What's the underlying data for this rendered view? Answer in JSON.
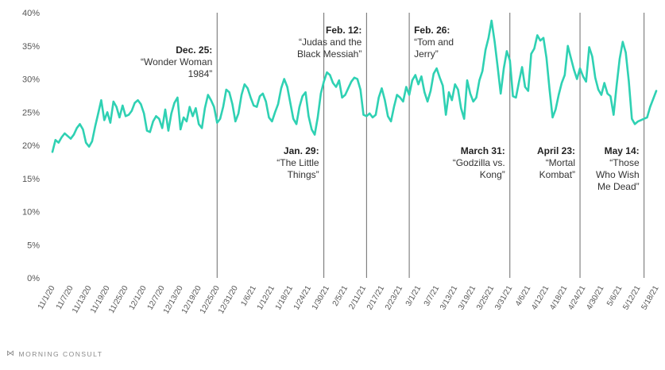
{
  "chart_data": {
    "type": "line",
    "title": "",
    "xlabel": "",
    "ylabel": "",
    "ylim": [
      0,
      40
    ],
    "y_ticks": [
      "0%",
      "5%",
      "10%",
      "15%",
      "20%",
      "25%",
      "30%",
      "35%",
      "40%"
    ],
    "grid": false,
    "line_color": "#2fd1b3",
    "x_tick_labels": [
      "11/1/20",
      "11/7/20",
      "11/13/20",
      "11/19/20",
      "11/25/20",
      "12/1/20",
      "12/7/20",
      "12/13/20",
      "12/19/20",
      "12/25/20",
      "12/31/20",
      "1/6/21",
      "1/12/21",
      "1/18/21",
      "1/24/21",
      "1/30/21",
      "2/5/21",
      "2/11/21",
      "2/17/21",
      "2/23/21",
      "3/1/21",
      "3/7/21",
      "3/13/21",
      "3/19/21",
      "3/25/21",
      "3/31/21",
      "4/6/21",
      "4/12/21",
      "4/18/21",
      "4/24/21",
      "4/30/21",
      "5/6/21",
      "5/12/21",
      "5/18/21"
    ],
    "series": [
      {
        "values": [
          {
            "x": "11/1/20",
            "y": 19.0
          },
          {
            "x": "11/2/20",
            "y": 20.8
          },
          {
            "x": "11/3/20",
            "y": 20.4
          },
          {
            "x": "11/4/20",
            "y": 21.2
          },
          {
            "x": "11/5/20",
            "y": 21.8
          },
          {
            "x": "11/6/20",
            "y": 21.4
          },
          {
            "x": "11/7/20",
            "y": 21.0
          },
          {
            "x": "11/8/20",
            "y": 21.6
          },
          {
            "x": "11/9/20",
            "y": 22.6
          },
          {
            "x": "11/10/20",
            "y": 23.2
          },
          {
            "x": "11/11/20",
            "y": 22.4
          },
          {
            "x": "11/12/20",
            "y": 20.4
          },
          {
            "x": "11/13/20",
            "y": 19.8
          },
          {
            "x": "11/14/20",
            "y": 20.6
          },
          {
            "x": "11/15/20",
            "y": 22.8
          },
          {
            "x": "11/16/20",
            "y": 24.8
          },
          {
            "x": "11/17/20",
            "y": 26.8
          },
          {
            "x": "11/18/20",
            "y": 23.8
          },
          {
            "x": "11/19/20",
            "y": 25.0
          },
          {
            "x": "11/20/20",
            "y": 23.4
          },
          {
            "x": "11/21/20",
            "y": 26.6
          },
          {
            "x": "11/22/20",
            "y": 25.8
          },
          {
            "x": "11/23/20",
            "y": 24.2
          },
          {
            "x": "11/24/20",
            "y": 26.0
          },
          {
            "x": "11/25/20",
            "y": 24.4
          },
          {
            "x": "11/26/20",
            "y": 24.6
          },
          {
            "x": "11/27/20",
            "y": 25.2
          },
          {
            "x": "11/28/20",
            "y": 26.4
          },
          {
            "x": "11/29/20",
            "y": 26.8
          },
          {
            "x": "11/30/20",
            "y": 26.2
          },
          {
            "x": "12/1/20",
            "y": 24.8
          },
          {
            "x": "12/2/20",
            "y": 22.2
          },
          {
            "x": "12/3/20",
            "y": 22.0
          },
          {
            "x": "12/4/20",
            "y": 23.6
          },
          {
            "x": "12/5/20",
            "y": 24.4
          },
          {
            "x": "12/6/20",
            "y": 24.0
          },
          {
            "x": "12/7/20",
            "y": 22.6
          },
          {
            "x": "12/8/20",
            "y": 25.4
          },
          {
            "x": "12/9/20",
            "y": 22.2
          },
          {
            "x": "12/10/20",
            "y": 24.8
          },
          {
            "x": "12/11/20",
            "y": 26.4
          },
          {
            "x": "12/12/20",
            "y": 27.2
          },
          {
            "x": "12/13/20",
            "y": 22.4
          },
          {
            "x": "12/14/20",
            "y": 24.2
          },
          {
            "x": "12/15/20",
            "y": 23.6
          },
          {
            "x": "12/16/20",
            "y": 25.8
          },
          {
            "x": "12/17/20",
            "y": 24.4
          },
          {
            "x": "12/18/20",
            "y": 25.6
          },
          {
            "x": "12/19/20",
            "y": 23.2
          },
          {
            "x": "12/20/20",
            "y": 22.6
          },
          {
            "x": "12/21/20",
            "y": 25.6
          },
          {
            "x": "12/22/20",
            "y": 27.6
          },
          {
            "x": "12/23/20",
            "y": 26.8
          },
          {
            "x": "12/24/20",
            "y": 25.8
          },
          {
            "x": "12/25/20",
            "y": 23.4
          },
          {
            "x": "12/26/20",
            "y": 24.0
          },
          {
            "x": "12/27/20",
            "y": 25.8
          },
          {
            "x": "12/28/20",
            "y": 28.4
          },
          {
            "x": "12/29/20",
            "y": 28.0
          },
          {
            "x": "12/30/20",
            "y": 26.2
          },
          {
            "x": "12/31/20",
            "y": 23.6
          },
          {
            "x": "1/1/21",
            "y": 24.8
          },
          {
            "x": "1/2/21",
            "y": 27.6
          },
          {
            "x": "1/3/21",
            "y": 29.2
          },
          {
            "x": "1/4/21",
            "y": 28.6
          },
          {
            "x": "1/5/21",
            "y": 27.2
          },
          {
            "x": "1/6/21",
            "y": 26.0
          },
          {
            "x": "1/7/21",
            "y": 25.8
          },
          {
            "x": "1/8/21",
            "y": 27.4
          },
          {
            "x": "1/9/21",
            "y": 27.8
          },
          {
            "x": "1/10/21",
            "y": 26.6
          },
          {
            "x": "1/11/21",
            "y": 24.2
          },
          {
            "x": "1/12/21",
            "y": 23.6
          },
          {
            "x": "1/13/21",
            "y": 25.0
          },
          {
            "x": "1/14/21",
            "y": 26.2
          },
          {
            "x": "1/15/21",
            "y": 28.6
          },
          {
            "x": "1/16/21",
            "y": 30.0
          },
          {
            "x": "1/17/21",
            "y": 28.8
          },
          {
            "x": "1/18/21",
            "y": 26.4
          },
          {
            "x": "1/19/21",
            "y": 24.0
          },
          {
            "x": "1/20/21",
            "y": 23.2
          },
          {
            "x": "1/21/21",
            "y": 25.8
          },
          {
            "x": "1/22/21",
            "y": 27.4
          },
          {
            "x": "1/23/21",
            "y": 28.0
          },
          {
            "x": "1/24/21",
            "y": 24.4
          },
          {
            "x": "1/25/21",
            "y": 22.4
          },
          {
            "x": "1/26/21",
            "y": 21.6
          },
          {
            "x": "1/27/21",
            "y": 24.2
          },
          {
            "x": "1/28/21",
            "y": 27.8
          },
          {
            "x": "1/29/21",
            "y": 29.6
          },
          {
            "x": "1/30/21",
            "y": 31.0
          },
          {
            "x": "1/31/21",
            "y": 30.6
          },
          {
            "x": "2/1/21",
            "y": 29.4
          },
          {
            "x": "2/2/21",
            "y": 28.8
          },
          {
            "x": "2/3/21",
            "y": 29.8
          },
          {
            "x": "2/4/21",
            "y": 27.2
          },
          {
            "x": "2/5/21",
            "y": 27.6
          },
          {
            "x": "2/6/21",
            "y": 28.6
          },
          {
            "x": "2/7/21",
            "y": 29.6
          },
          {
            "x": "2/8/21",
            "y": 30.2
          },
          {
            "x": "2/9/21",
            "y": 30.0
          },
          {
            "x": "2/10/21",
            "y": 28.4
          },
          {
            "x": "2/11/21",
            "y": 24.6
          },
          {
            "x": "2/12/21",
            "y": 24.4
          },
          {
            "x": "2/13/21",
            "y": 24.8
          },
          {
            "x": "2/14/21",
            "y": 24.2
          },
          {
            "x": "2/15/21",
            "y": 24.6
          },
          {
            "x": "2/16/21",
            "y": 27.2
          },
          {
            "x": "2/17/21",
            "y": 28.6
          },
          {
            "x": "2/18/21",
            "y": 26.8
          },
          {
            "x": "2/19/21",
            "y": 24.4
          },
          {
            "x": "2/20/21",
            "y": 23.6
          },
          {
            "x": "2/21/21",
            "y": 25.8
          },
          {
            "x": "2/22/21",
            "y": 27.6
          },
          {
            "x": "2/23/21",
            "y": 27.2
          },
          {
            "x": "2/24/21",
            "y": 26.6
          },
          {
            "x": "2/25/21",
            "y": 28.8
          },
          {
            "x": "2/26/21",
            "y": 27.6
          },
          {
            "x": "2/27/21",
            "y": 29.8
          },
          {
            "x": "2/28/21",
            "y": 30.6
          },
          {
            "x": "3/1/21",
            "y": 29.2
          },
          {
            "x": "3/2/21",
            "y": 30.4
          },
          {
            "x": "3/3/21",
            "y": 28.0
          },
          {
            "x": "3/4/21",
            "y": 26.6
          },
          {
            "x": "3/5/21",
            "y": 28.2
          },
          {
            "x": "3/6/21",
            "y": 30.8
          },
          {
            "x": "3/7/21",
            "y": 31.6
          },
          {
            "x": "3/8/21",
            "y": 30.2
          },
          {
            "x": "3/9/21",
            "y": 29.0
          },
          {
            "x": "3/10/21",
            "y": 24.6
          },
          {
            "x": "3/11/21",
            "y": 28.0
          },
          {
            "x": "3/12/21",
            "y": 26.8
          },
          {
            "x": "3/13/21",
            "y": 29.2
          },
          {
            "x": "3/14/21",
            "y": 28.4
          },
          {
            "x": "3/15/21",
            "y": 25.6
          },
          {
            "x": "3/16/21",
            "y": 24.0
          },
          {
            "x": "3/17/21",
            "y": 29.8
          },
          {
            "x": "3/18/21",
            "y": 27.8
          },
          {
            "x": "3/19/21",
            "y": 26.6
          },
          {
            "x": "3/20/21",
            "y": 27.2
          },
          {
            "x": "3/21/21",
            "y": 29.8
          },
          {
            "x": "3/22/21",
            "y": 31.2
          },
          {
            "x": "3/23/21",
            "y": 34.4
          },
          {
            "x": "3/24/21",
            "y": 36.2
          },
          {
            "x": "3/25/21",
            "y": 38.8
          },
          {
            "x": "3/26/21",
            "y": 35.6
          },
          {
            "x": "3/27/21",
            "y": 31.8
          },
          {
            "x": "3/28/21",
            "y": 27.8
          },
          {
            "x": "3/29/21",
            "y": 31.6
          },
          {
            "x": "3/30/21",
            "y": 34.2
          },
          {
            "x": "3/31/21",
            "y": 32.8
          },
          {
            "x": "4/1/21",
            "y": 27.4
          },
          {
            "x": "4/2/21",
            "y": 27.2
          },
          {
            "x": "4/3/21",
            "y": 29.6
          },
          {
            "x": "4/4/21",
            "y": 31.8
          },
          {
            "x": "4/5/21",
            "y": 28.8
          },
          {
            "x": "4/6/21",
            "y": 28.2
          },
          {
            "x": "4/7/21",
            "y": 33.8
          },
          {
            "x": "4/8/21",
            "y": 34.6
          },
          {
            "x": "4/9/21",
            "y": 36.6
          },
          {
            "x": "4/10/21",
            "y": 35.8
          },
          {
            "x": "4/11/21",
            "y": 36.2
          },
          {
            "x": "4/12/21",
            "y": 33.2
          },
          {
            "x": "4/13/21",
            "y": 28.4
          },
          {
            "x": "4/14/21",
            "y": 24.2
          },
          {
            "x": "4/15/21",
            "y": 25.4
          },
          {
            "x": "4/16/21",
            "y": 27.6
          },
          {
            "x": "4/17/21",
            "y": 29.4
          },
          {
            "x": "4/18/21",
            "y": 30.6
          },
          {
            "x": "4/19/21",
            "y": 35.0
          },
          {
            "x": "4/20/21",
            "y": 33.2
          },
          {
            "x": "4/21/21",
            "y": 31.4
          },
          {
            "x": "4/22/21",
            "y": 30.0
          },
          {
            "x": "4/23/21",
            "y": 31.6
          },
          {
            "x": "4/24/21",
            "y": 30.4
          },
          {
            "x": "4/25/21",
            "y": 29.6
          },
          {
            "x": "4/26/21",
            "y": 34.8
          },
          {
            "x": "4/27/21",
            "y": 33.4
          },
          {
            "x": "4/28/21",
            "y": 30.2
          },
          {
            "x": "4/29/21",
            "y": 28.4
          },
          {
            "x": "4/30/21",
            "y": 27.6
          },
          {
            "x": "5/1/21",
            "y": 29.4
          },
          {
            "x": "5/2/21",
            "y": 27.8
          },
          {
            "x": "5/3/21",
            "y": 27.4
          },
          {
            "x": "5/4/21",
            "y": 24.6
          },
          {
            "x": "5/5/21",
            "y": 29.0
          },
          {
            "x": "5/6/21",
            "y": 33.0
          },
          {
            "x": "5/7/21",
            "y": 35.6
          },
          {
            "x": "5/8/21",
            "y": 34.0
          },
          {
            "x": "5/9/21",
            "y": 29.6
          },
          {
            "x": "5/10/21",
            "y": 24.0
          },
          {
            "x": "5/11/21",
            "y": 23.2
          },
          {
            "x": "5/12/21",
            "y": 23.6
          },
          {
            "x": "5/13/21",
            "y": 23.8
          },
          {
            "x": "5/14/21",
            "y": 24.0
          },
          {
            "x": "5/15/21",
            "y": 24.2
          },
          {
            "x": "5/16/21",
            "y": 25.8
          },
          {
            "x": "5/17/21",
            "y": 27.0
          },
          {
            "x": "5/18/21",
            "y": 28.2
          }
        ]
      }
    ],
    "annotations": [
      {
        "x": "12/25/20",
        "date": "Dec. 25:",
        "title_lines": [
          "“Wonder Woman",
          "1984”"
        ],
        "placement": "top-left"
      },
      {
        "x": "1/29/21",
        "date": "Jan. 29:",
        "title_lines": [
          "“The Little",
          "Things”"
        ],
        "placement": "bottom-left"
      },
      {
        "x": "2/12/21",
        "date": "Feb. 12:",
        "title_lines": [
          "“Judas and the",
          "Black Messiah”"
        ],
        "placement": "top-left"
      },
      {
        "x": "2/26/21",
        "date": "Feb. 26:",
        "title_lines": [
          "“Tom and",
          "Jerry”"
        ],
        "placement": "top-right"
      },
      {
        "x": "3/31/21",
        "date": "March 31:",
        "title_lines": [
          "“Godzilla vs.",
          "Kong”"
        ],
        "placement": "bottom-left"
      },
      {
        "x": "4/23/21",
        "date": "April 23:",
        "title_lines": [
          "“Mortal",
          "Kombat”"
        ],
        "placement": "bottom-left"
      },
      {
        "x": "5/14/21",
        "date": "May 14:",
        "title_lines": [
          "“Those",
          "Who Wish",
          "Me Dead”"
        ],
        "placement": "bottom-left"
      }
    ]
  },
  "footer": {
    "logo_icon": "morning-consult-logo-icon",
    "brand": "MORNING CONSULT"
  }
}
